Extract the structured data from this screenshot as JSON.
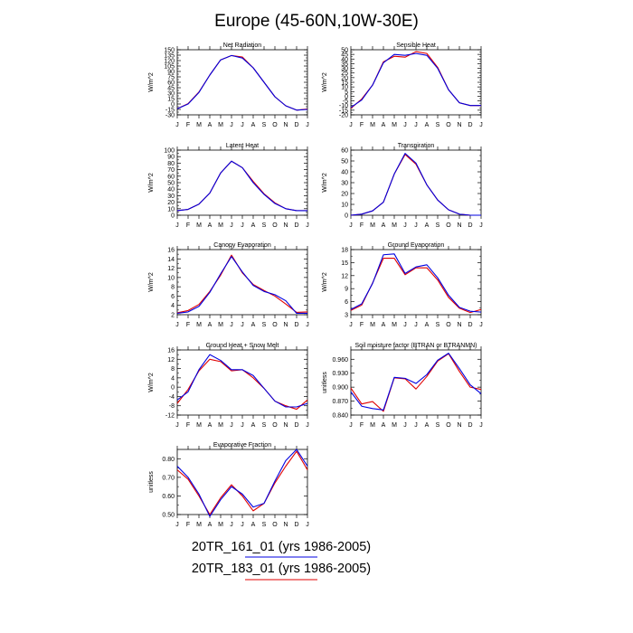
{
  "title": "Europe (45-60N,10W-30E)",
  "month_labels": [
    "J",
    "F",
    "M",
    "A",
    "M",
    "J",
    "J",
    "A",
    "S",
    "O",
    "N",
    "D",
    "J"
  ],
  "colors": {
    "red_series": "#e00000",
    "blue_series": "#0000e0"
  },
  "legend": [
    {
      "label": "20TR_161_01 (yrs 1986-2005)",
      "color": "#0000e0"
    },
    {
      "label": "20TR_183_01 (yrs 1986-2005)",
      "color": "#e00000"
    }
  ],
  "chart_data": [
    {
      "type": "line",
      "title": "Net Radiation",
      "ylabel": "W/m^2",
      "ylim": [
        -30,
        150
      ],
      "yticks": [
        "-30",
        "-15",
        "0",
        "15",
        "30",
        "45",
        "60",
        "75",
        "90",
        "105",
        "120",
        "135",
        "150"
      ],
      "series": [
        {
          "color": "red_series",
          "values": [
            -13,
            1,
            33,
            80,
            122,
            134,
            130,
            100,
            60,
            20,
            -5,
            -17,
            -14
          ]
        },
        {
          "color": "blue_series",
          "values": [
            -13,
            0,
            32,
            80,
            122,
            134,
            127,
            100,
            60,
            20,
            -5,
            -17,
            -15
          ]
        }
      ]
    },
    {
      "type": "line",
      "title": "Sensible Heat",
      "ylabel": "W/m^2",
      "ylim": [
        -20,
        50
      ],
      "yticks": [
        "-20",
        "-15",
        "-10",
        "-5",
        "0",
        "5",
        "10",
        "15",
        "20",
        "25",
        "30",
        "35",
        "40",
        "45",
        "50"
      ],
      "series": [
        {
          "color": "red_series",
          "values": [
            -13,
            -3,
            12,
            37,
            43,
            42,
            48,
            46,
            31,
            7,
            -7,
            -10,
            -10
          ]
        },
        {
          "color": "blue_series",
          "values": [
            -12,
            -4,
            12,
            36,
            45,
            44,
            46,
            44,
            30,
            7,
            -7,
            -10,
            -10
          ]
        }
      ]
    },
    {
      "type": "line",
      "title": "Latent Heat",
      "ylabel": "W/m^2",
      "ylim": [
        0,
        100
      ],
      "yticks": [
        "0",
        "10",
        "20",
        "30",
        "40",
        "50",
        "60",
        "70",
        "80",
        "90",
        "100"
      ],
      "series": [
        {
          "color": "red_series",
          "values": [
            7,
            9,
            17,
            34,
            65,
            83,
            73,
            52,
            33,
            19,
            10,
            7,
            7
          ]
        },
        {
          "color": "blue_series",
          "values": [
            7,
            9,
            17,
            34,
            65,
            83,
            73,
            50,
            32,
            18,
            10,
            7,
            7
          ]
        }
      ]
    },
    {
      "type": "line",
      "title": "Transpiration",
      "ylabel": "W/m^2",
      "ylim": [
        0,
        60
      ],
      "yticks": [
        "0",
        "10",
        "20",
        "30",
        "40",
        "50",
        "60"
      ],
      "series": [
        {
          "color": "red_series",
          "values": [
            0,
            1,
            4,
            12,
            38,
            56,
            47,
            28,
            14,
            5,
            1,
            0,
            0
          ]
        },
        {
          "color": "blue_series",
          "values": [
            0,
            1,
            4,
            12,
            38,
            57,
            48,
            28,
            14,
            5,
            1,
            0,
            0
          ]
        }
      ]
    },
    {
      "type": "line",
      "title": "Canopy Evaporation",
      "ylabel": "W/m^2",
      "ylim": [
        2,
        16
      ],
      "yticks": [
        "2",
        "4",
        "6",
        "8",
        "10",
        "12",
        "14",
        "16"
      ],
      "series": [
        {
          "color": "red_series",
          "values": [
            2.4,
            2.9,
            4.2,
            7.0,
            10.5,
            14.8,
            11.0,
            8.5,
            7.2,
            6.0,
            4.3,
            2.5,
            2.6
          ]
        },
        {
          "color": "blue_series",
          "values": [
            2.3,
            2.6,
            3.8,
            6.8,
            10.8,
            14.5,
            11.2,
            8.3,
            7.0,
            6.3,
            5.0,
            2.3,
            2.3
          ]
        }
      ]
    },
    {
      "type": "line",
      "title": "Ground Evaporation",
      "ylabel": "W/m^2",
      "ylim": [
        3,
        18
      ],
      "yticks": [
        "3",
        "6",
        "9",
        "12",
        "15",
        "18"
      ],
      "series": [
        {
          "color": "red_series",
          "values": [
            4.0,
            5.2,
            10.3,
            16.0,
            16.0,
            12.2,
            13.8,
            13.8,
            11.0,
            7.0,
            4.5,
            3.5,
            4.2
          ]
        },
        {
          "color": "blue_series",
          "values": [
            4.2,
            5.5,
            10.2,
            16.8,
            17.0,
            12.5,
            14.0,
            14.5,
            11.5,
            7.5,
            4.7,
            3.8,
            3.6
          ]
        }
      ]
    },
    {
      "type": "line",
      "title": "Ground Heat + Snow Melt",
      "ylabel": "W/m^2",
      "ylim": [
        -12,
        16
      ],
      "yticks": [
        "-12",
        "-8",
        "-4",
        "0",
        "4",
        "8",
        "12",
        "16"
      ],
      "series": [
        {
          "color": "red_series",
          "values": [
            -7,
            -1,
            7,
            12,
            11,
            7,
            7.5,
            4,
            -0.5,
            -6,
            -8,
            -9.5,
            -5.5
          ]
        },
        {
          "color": "blue_series",
          "values": [
            -5.5,
            -2,
            7.5,
            14,
            11.5,
            7.5,
            7.5,
            5,
            -0.5,
            -6,
            -8.5,
            -8.5,
            -7
          ]
        }
      ]
    },
    {
      "type": "line",
      "title": "Soil moisture factor (BTRAN or BTRANMN)",
      "ylabel": "unitless",
      "ylim": [
        0.84,
        0.98
      ],
      "yticks": [
        "0.840",
        "0.870",
        "0.900",
        "0.930",
        "0.960"
      ],
      "series": [
        {
          "color": "red_series",
          "values": [
            0.898,
            0.864,
            0.869,
            0.848,
            0.92,
            0.918,
            0.896,
            0.923,
            0.956,
            0.972,
            0.934,
            0.9,
            0.895
          ]
        },
        {
          "color": "blue_series",
          "values": [
            0.89,
            0.859,
            0.854,
            0.851,
            0.921,
            0.919,
            0.908,
            0.927,
            0.958,
            0.973,
            0.94,
            0.905,
            0.886
          ]
        }
      ]
    },
    {
      "type": "line",
      "title": "Evaporative Fraction",
      "ylabel": "unitless",
      "ylim": [
        0.5,
        0.85
      ],
      "yticks": [
        "0.50",
        "0.60",
        "0.70",
        "0.80"
      ],
      "series": [
        {
          "color": "red_series",
          "values": [
            0.74,
            0.69,
            0.6,
            0.5,
            0.59,
            0.66,
            0.6,
            0.52,
            0.56,
            0.67,
            0.76,
            0.84,
            0.74
          ]
        },
        {
          "color": "blue_series",
          "values": [
            0.76,
            0.7,
            0.61,
            0.49,
            0.58,
            0.65,
            0.61,
            0.54,
            0.56,
            0.68,
            0.79,
            0.85,
            0.76
          ]
        }
      ]
    }
  ]
}
